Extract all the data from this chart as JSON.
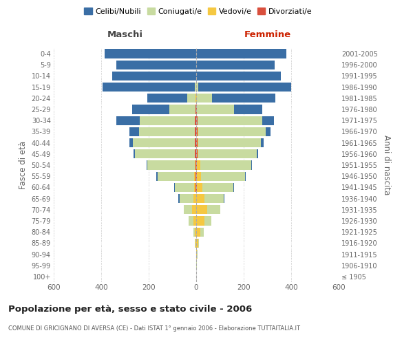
{
  "age_groups": [
    "100+",
    "95-99",
    "90-94",
    "85-89",
    "80-84",
    "75-79",
    "70-74",
    "65-69",
    "60-64",
    "55-59",
    "50-54",
    "45-49",
    "40-44",
    "35-39",
    "30-34",
    "25-29",
    "20-24",
    "15-19",
    "10-14",
    "5-9",
    "0-4"
  ],
  "birth_years": [
    "≤ 1905",
    "1906-1910",
    "1911-1915",
    "1916-1920",
    "1921-1925",
    "1926-1930",
    "1931-1935",
    "1936-1940",
    "1941-1945",
    "1946-1950",
    "1951-1955",
    "1956-1960",
    "1961-1965",
    "1966-1970",
    "1971-1975",
    "1976-1980",
    "1981-1985",
    "1986-1990",
    "1991-1995",
    "1996-2000",
    "2001-2005"
  ],
  "males": {
    "celibi": [
      0,
      0,
      0,
      0,
      0,
      0,
      2,
      3,
      4,
      5,
      5,
      6,
      15,
      40,
      100,
      155,
      170,
      390,
      355,
      335,
      385
    ],
    "coniugati": [
      0,
      0,
      1,
      3,
      8,
      20,
      35,
      60,
      80,
      155,
      200,
      250,
      260,
      235,
      230,
      110,
      35,
      5,
      0,
      0,
      0
    ],
    "vedovi": [
      0,
      0,
      0,
      2,
      5,
      12,
      15,
      10,
      8,
      5,
      2,
      2,
      1,
      1,
      2,
      1,
      1,
      0,
      0,
      0,
      0
    ],
    "divorziati": [
      0,
      0,
      0,
      0,
      0,
      1,
      1,
      1,
      2,
      3,
      3,
      5,
      5,
      5,
      5,
      3,
      1,
      0,
      0,
      0,
      0
    ]
  },
  "females": {
    "nubili": [
      0,
      0,
      0,
      0,
      0,
      0,
      2,
      2,
      3,
      4,
      5,
      6,
      10,
      20,
      50,
      120,
      265,
      390,
      355,
      330,
      380
    ],
    "coniugate": [
      0,
      1,
      2,
      5,
      15,
      30,
      55,
      80,
      130,
      185,
      215,
      245,
      265,
      285,
      270,
      155,
      65,
      10,
      1,
      0,
      0
    ],
    "vedove": [
      0,
      1,
      3,
      8,
      18,
      35,
      45,
      35,
      25,
      18,
      12,
      5,
      3,
      3,
      2,
      1,
      1,
      0,
      0,
      0,
      0
    ],
    "divorziate": [
      0,
      0,
      0,
      0,
      0,
      0,
      0,
      1,
      2,
      3,
      4,
      5,
      5,
      5,
      5,
      3,
      1,
      0,
      0,
      0,
      0
    ]
  },
  "colors": {
    "celibi": "#3a6ea5",
    "coniugati": "#c8dba0",
    "vedovi": "#f5c842",
    "divorziati": "#d94f3d"
  },
  "title": "Popolazione per età, sesso e stato civile - 2006",
  "subtitle": "COMUNE DI GRICIGNANO DI AVERSA (CE) - Dati ISTAT 1° gennaio 2006 - Elaborazione TUTTAITALIA.IT",
  "ylabel_left": "Fasce di età",
  "ylabel_right": "Anni di nascita",
  "xlim": 600,
  "bg_color": "#ffffff",
  "grid_color": "#cccccc"
}
